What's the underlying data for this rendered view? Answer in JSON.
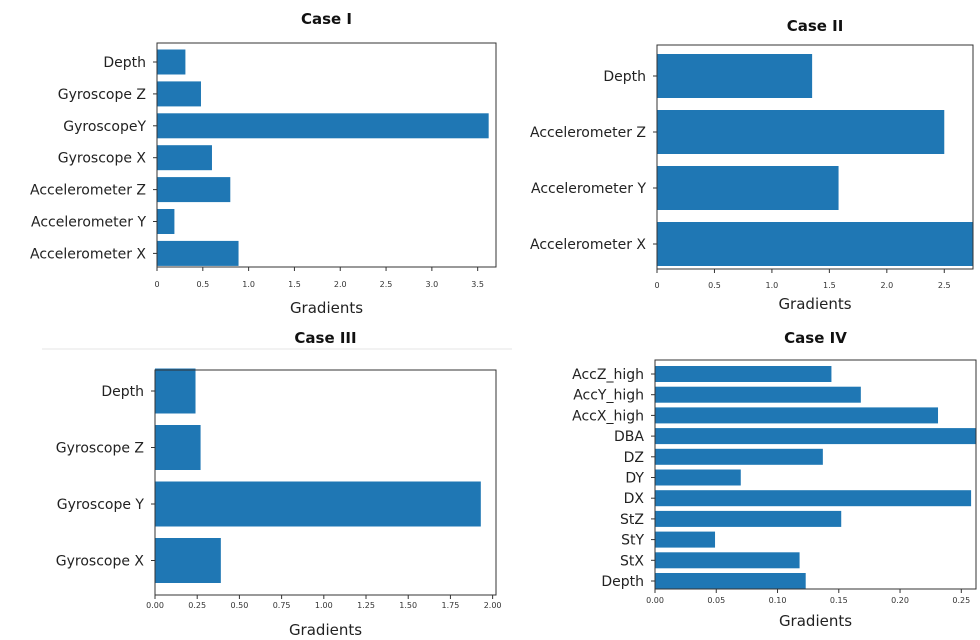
{
  "chart_data": [
    {
      "type": "bar",
      "orientation": "horizontal",
      "title": "Case I",
      "xlabel": "Gradients",
      "ylabel": "",
      "categories": [
        "Depth",
        "Gyroscope Z",
        "GyroscopeY",
        "Gyroscope X",
        "Accelerometer Z",
        "Accelerometer Y",
        "Accelerometer X"
      ],
      "values": [
        0.31,
        0.48,
        3.62,
        0.6,
        0.8,
        0.19,
        0.89
      ],
      "xlim": [
        0,
        3.7
      ],
      "xticks": [
        "0",
        "0.5",
        "1.0",
        "1.5",
        "2.0",
        "2.5",
        "3.0",
        "3.5"
      ],
      "grid": false,
      "color": "#1f77b4"
    },
    {
      "type": "bar",
      "orientation": "horizontal",
      "title": "Case II",
      "xlabel": "Gradients",
      "ylabel": "",
      "categories": [
        "Depth",
        "Accelerometer Z",
        "Accelerometer Y",
        "Accelerometer X"
      ],
      "values": [
        1.35,
        2.5,
        1.58,
        2.75
      ],
      "xlim": [
        0,
        2.75
      ],
      "xticks": [
        "0",
        "0.5",
        "1.0",
        "1.5",
        "2.0",
        "2.5"
      ],
      "grid": false,
      "color": "#1f77b4"
    },
    {
      "type": "bar",
      "orientation": "horizontal",
      "title": "Case III",
      "xlabel": "Gradients",
      "ylabel": "",
      "categories": [
        "Depth",
        "Gyroscope Z",
        "Gyroscope Y",
        "Gyroscope X"
      ],
      "values": [
        0.24,
        0.27,
        1.93,
        0.39
      ],
      "xlim": [
        0,
        2.02
      ],
      "xticks": [
        "0.00",
        "0.25",
        "0.50",
        "0.75",
        "1.00",
        "1.25",
        "1.50",
        "1.75",
        "2.00"
      ],
      "grid": false,
      "color": "#1f77b4"
    },
    {
      "type": "bar",
      "orientation": "horizontal",
      "title": "Case IV",
      "xlabel": "Gradients",
      "ylabel": "",
      "categories": [
        "AccZ_high",
        "AccY_high",
        "AccX_high",
        "DBA",
        "DZ",
        "DY",
        "DX",
        "StZ",
        "StY",
        "StX",
        "Depth"
      ],
      "values": [
        0.144,
        0.168,
        0.231,
        0.262,
        0.137,
        0.07,
        0.258,
        0.152,
        0.049,
        0.118,
        0.123
      ],
      "xlim": [
        0,
        0.262
      ],
      "xticks": [
        "0.00",
        "0.05",
        "0.10",
        "0.15",
        "0.20",
        "0.25"
      ],
      "grid": false,
      "color": "#1f77b4"
    }
  ]
}
